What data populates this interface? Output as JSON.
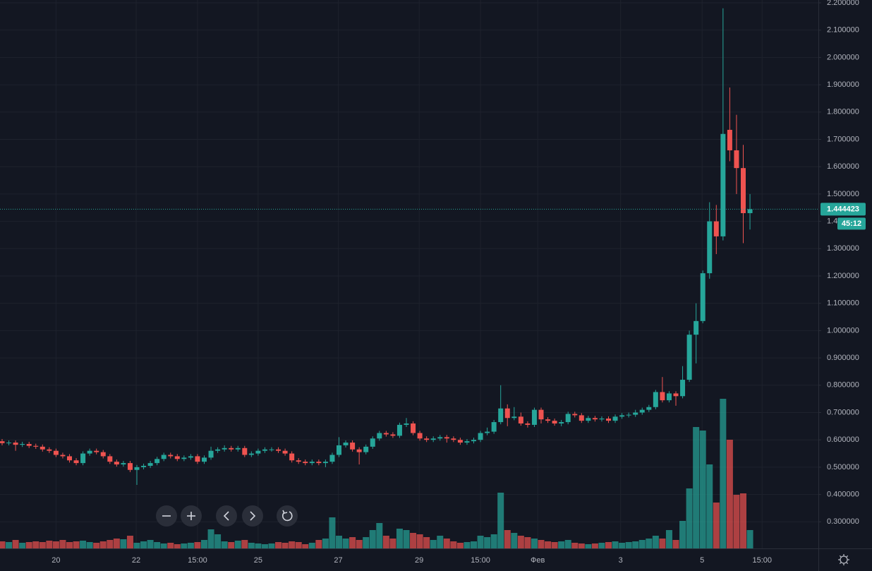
{
  "chart_data": {
    "type": "candlestick",
    "up_color": "#26a69a",
    "down_color": "#ef5350",
    "grid": true,
    "ylim": [
      0.2026,
      2.2103
    ],
    "yticks": [
      {
        "value": 0.3,
        "label": "0.300000"
      },
      {
        "value": 0.4,
        "label": "0.400000"
      },
      {
        "value": 0.5,
        "label": "0.500000"
      },
      {
        "value": 0.6,
        "label": "0.600000"
      },
      {
        "value": 0.7,
        "label": "0.700000"
      },
      {
        "value": 0.8,
        "label": "0.800000"
      },
      {
        "value": 0.9,
        "label": "0.900000"
      },
      {
        "value": 1.0,
        "label": "1.000000"
      },
      {
        "value": 1.1,
        "label": "1.100000"
      },
      {
        "value": 1.2,
        "label": "1.200000"
      },
      {
        "value": 1.3,
        "label": "1.300000"
      },
      {
        "value": 1.4,
        "label": "1.400000"
      },
      {
        "value": 1.5,
        "label": "1.500000"
      },
      {
        "value": 1.6,
        "label": "1.600000"
      },
      {
        "value": 1.7,
        "label": "1.700000"
      },
      {
        "value": 1.8,
        "label": "1.800000"
      },
      {
        "value": 1.9,
        "label": "1.900000"
      },
      {
        "value": 2.0,
        "label": "2.000000"
      },
      {
        "value": 2.1,
        "label": "2.100000"
      },
      {
        "value": 2.2,
        "label": "2.200000"
      }
    ],
    "xticks": [
      {
        "value": 8,
        "label": "20"
      },
      {
        "value": 19.9,
        "label": "22"
      },
      {
        "value": 29,
        "label": "15:00"
      },
      {
        "value": 38,
        "label": "25"
      },
      {
        "value": 49.9,
        "label": "27"
      },
      {
        "value": 61.9,
        "label": "29"
      },
      {
        "value": 71,
        "label": "15:00"
      },
      {
        "value": 79.5,
        "label": "Фев"
      },
      {
        "value": 91.8,
        "label": "3"
      },
      {
        "value": 103.9,
        "label": "5"
      },
      {
        "value": 112.8,
        "label": "15:00"
      }
    ],
    "open": [
      0.595,
      0.588,
      0.59,
      0.582,
      0.585,
      0.578,
      0.575,
      0.565,
      0.56,
      0.545,
      0.54,
      0.525,
      0.515,
      0.55,
      0.56,
      0.555,
      0.54,
      0.52,
      0.51,
      0.515,
      0.49,
      0.5,
      0.505,
      0.515,
      0.53,
      0.545,
      0.54,
      0.53,
      0.535,
      0.54,
      0.52,
      0.535,
      0.56,
      0.565,
      0.57,
      0.565,
      0.57,
      0.545,
      0.55,
      0.56,
      0.565,
      0.565,
      0.56,
      0.55,
      0.525,
      0.52,
      0.515,
      0.52,
      0.515,
      0.52,
      0.545,
      0.58,
      0.59,
      0.565,
      0.555,
      0.575,
      0.605,
      0.625,
      0.62,
      0.615,
      0.655,
      0.66,
      0.625,
      0.605,
      0.6,
      0.605,
      0.61,
      0.605,
      0.6,
      0.59,
      0.595,
      0.6,
      0.625,
      0.63,
      0.665,
      0.715,
      0.68,
      0.685,
      0.66,
      0.655,
      0.71,
      0.675,
      0.67,
      0.66,
      0.665,
      0.695,
      0.69,
      0.67,
      0.68,
      0.675,
      0.678,
      0.67,
      0.685,
      0.69,
      0.692,
      0.7,
      0.71,
      0.72,
      0.775,
      0.745,
      0.77,
      0.76,
      0.82,
      0.985,
      1.035,
      1.21,
      1.4,
      1.345,
      1.735,
      1.66,
      1.595,
      1.43
    ],
    "high": [
      0.603,
      0.598,
      0.598,
      0.593,
      0.593,
      0.586,
      0.583,
      0.573,
      0.568,
      0.553,
      0.548,
      0.533,
      0.558,
      0.568,
      0.568,
      0.563,
      0.548,
      0.528,
      0.523,
      0.523,
      0.508,
      0.513,
      0.523,
      0.538,
      0.553,
      0.553,
      0.548,
      0.543,
      0.548,
      0.548,
      0.543,
      0.575,
      0.573,
      0.58,
      0.578,
      0.578,
      0.578,
      0.558,
      0.568,
      0.573,
      0.573,
      0.573,
      0.568,
      0.558,
      0.533,
      0.528,
      0.528,
      0.528,
      0.528,
      0.553,
      0.61,
      0.598,
      0.598,
      0.573,
      0.583,
      0.613,
      0.633,
      0.633,
      0.628,
      0.663,
      0.68,
      0.668,
      0.633,
      0.613,
      0.613,
      0.618,
      0.618,
      0.613,
      0.608,
      0.603,
      0.608,
      0.633,
      0.645,
      0.673,
      0.8,
      0.73,
      0.72,
      0.7,
      0.668,
      0.718,
      0.718,
      0.683,
      0.678,
      0.673,
      0.703,
      0.703,
      0.698,
      0.688,
      0.688,
      0.686,
      0.686,
      0.693,
      0.698,
      0.7,
      0.71,
      0.718,
      0.728,
      0.783,
      0.83,
      0.778,
      0.778,
      0.87,
      1.0,
      1.1,
      1.22,
      1.47,
      1.46,
      2.18,
      1.89,
      1.79,
      1.68,
      1.5
    ],
    "low": [
      0.58,
      0.58,
      0.56,
      0.574,
      0.57,
      0.567,
      0.557,
      0.552,
      0.537,
      0.532,
      0.517,
      0.507,
      0.507,
      0.542,
      0.547,
      0.532,
      0.512,
      0.502,
      0.502,
      0.482,
      0.435,
      0.492,
      0.497,
      0.507,
      0.522,
      0.532,
      0.522,
      0.522,
      0.527,
      0.512,
      0.512,
      0.527,
      0.552,
      0.557,
      0.557,
      0.557,
      0.537,
      0.537,
      0.542,
      0.552,
      0.557,
      0.552,
      0.542,
      0.517,
      0.512,
      0.507,
      0.507,
      0.507,
      0.5,
      0.512,
      0.537,
      0.572,
      0.557,
      0.51,
      0.547,
      0.567,
      0.597,
      0.612,
      0.607,
      0.607,
      0.647,
      0.617,
      0.597,
      0.592,
      0.592,
      0.597,
      0.59,
      0.592,
      0.582,
      0.582,
      0.587,
      0.592,
      0.617,
      0.622,
      0.657,
      0.65,
      0.672,
      0.652,
      0.645,
      0.647,
      0.66,
      0.662,
      0.652,
      0.65,
      0.657,
      0.682,
      0.662,
      0.662,
      0.667,
      0.667,
      0.662,
      0.662,
      0.677,
      0.682,
      0.684,
      0.692,
      0.702,
      0.712,
      0.737,
      0.737,
      0.725,
      0.752,
      0.812,
      0.88,
      1.027,
      1.19,
      1.28,
      1.33,
      1.62,
      1.5,
      1.32,
      1.37
    ],
    "close": [
      0.588,
      0.59,
      0.582,
      0.585,
      0.578,
      0.575,
      0.565,
      0.56,
      0.545,
      0.54,
      0.525,
      0.515,
      0.55,
      0.56,
      0.555,
      0.54,
      0.52,
      0.51,
      0.515,
      0.49,
      0.5,
      0.505,
      0.515,
      0.53,
      0.545,
      0.54,
      0.53,
      0.535,
      0.54,
      0.52,
      0.535,
      0.56,
      0.565,
      0.57,
      0.565,
      0.57,
      0.545,
      0.55,
      0.56,
      0.565,
      0.565,
      0.56,
      0.55,
      0.525,
      0.52,
      0.515,
      0.52,
      0.515,
      0.52,
      0.545,
      0.58,
      0.59,
      0.565,
      0.555,
      0.575,
      0.605,
      0.625,
      0.62,
      0.615,
      0.655,
      0.66,
      0.625,
      0.605,
      0.6,
      0.605,
      0.61,
      0.605,
      0.6,
      0.59,
      0.595,
      0.6,
      0.625,
      0.63,
      0.665,
      0.715,
      0.68,
      0.685,
      0.66,
      0.655,
      0.71,
      0.675,
      0.67,
      0.66,
      0.665,
      0.695,
      0.69,
      0.67,
      0.68,
      0.675,
      0.678,
      0.67,
      0.685,
      0.69,
      0.692,
      0.7,
      0.71,
      0.72,
      0.775,
      0.745,
      0.77,
      0.76,
      0.82,
      0.985,
      1.035,
      1.21,
      1.4,
      1.345,
      1.72,
      1.66,
      1.595,
      1.43,
      1.444423
    ],
    "volume": [
      10,
      9,
      12,
      8,
      9,
      10,
      9,
      11,
      10,
      12,
      9,
      10,
      11,
      9,
      8,
      10,
      12,
      14,
      13,
      18,
      8,
      10,
      12,
      9,
      7,
      8,
      6,
      7,
      8,
      9,
      12,
      27,
      20,
      10,
      9,
      11,
      12,
      8,
      7,
      6,
      7,
      9,
      8,
      10,
      9,
      6,
      8,
      12,
      14,
      44,
      18,
      14,
      16,
      12,
      16,
      26,
      36,
      18,
      14,
      28,
      26,
      22,
      20,
      16,
      12,
      18,
      14,
      10,
      8,
      9,
      10,
      18,
      16,
      20,
      79,
      26,
      22,
      18,
      16,
      14,
      12,
      10,
      9,
      10,
      12,
      8,
      7,
      6,
      7,
      8,
      9,
      10,
      8,
      9,
      10,
      12,
      14,
      18,
      14,
      26,
      12,
      39,
      85,
      172,
      167,
      119,
      65,
      212,
      154,
      76,
      78,
      26
    ],
    "last_price": 1.444423,
    "countdown": "45:12"
  }
}
